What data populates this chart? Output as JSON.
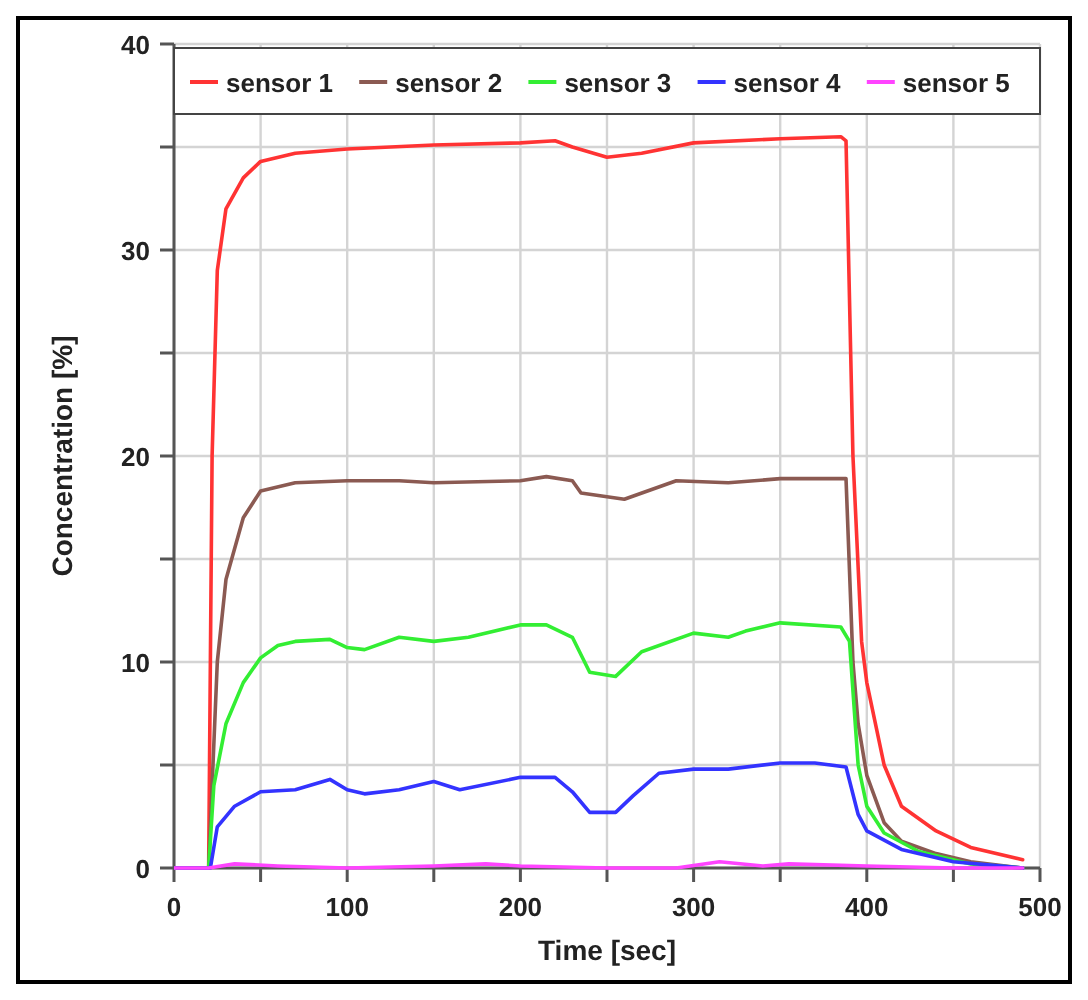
{
  "chart_data": {
    "type": "line",
    "xlabel": "Time [sec]",
    "ylabel": "Concentration [%]",
    "xlim": [
      0,
      500
    ],
    "ylim": [
      0,
      40
    ],
    "xticks": [
      0,
      {
        "value": 50,
        "label": null
      },
      100,
      {
        "value": 150,
        "label": null
      },
      200,
      {
        "value": 250,
        "label": null
      },
      300,
      {
        "value": 350,
        "label": null
      },
      400,
      {
        "value": 450,
        "label": null
      },
      500
    ],
    "yticks": [
      0,
      {
        "value": 5,
        "label": null
      },
      10,
      {
        "value": 15,
        "label": null
      },
      20,
      {
        "value": 25,
        "label": null
      },
      30,
      {
        "value": 35,
        "label": null
      },
      40
    ],
    "grid": true,
    "legend": "top",
    "marker": "none",
    "line_style": "solid",
    "series": [
      {
        "name": "sensor 1",
        "color": "#ff3333",
        "x": [
          0,
          20,
          22,
          25,
          30,
          40,
          50,
          70,
          100,
          150,
          200,
          220,
          230,
          250,
          270,
          300,
          350,
          385,
          388,
          392,
          397,
          400,
          410,
          420,
          440,
          460,
          490
        ],
        "values": [
          0,
          0,
          20,
          29,
          32,
          33.5,
          34.3,
          34.7,
          34.9,
          35.1,
          35.2,
          35.3,
          35,
          34.5,
          34.7,
          35.2,
          35.4,
          35.5,
          35.3,
          20,
          11,
          9,
          5,
          3,
          1.8,
          1,
          0.4
        ]
      },
      {
        "name": "sensor 2",
        "color": "#8b5a52",
        "x": [
          0,
          20,
          25,
          30,
          40,
          50,
          70,
          100,
          130,
          150,
          200,
          215,
          230,
          235,
          260,
          290,
          320,
          350,
          388,
          392,
          395,
          400,
          410,
          420,
          440,
          460,
          490
        ],
        "values": [
          0,
          0,
          10,
          14,
          17,
          18.3,
          18.7,
          18.8,
          18.8,
          18.7,
          18.8,
          19,
          18.8,
          18.2,
          17.9,
          18.8,
          18.7,
          18.9,
          18.9,
          10,
          7,
          4.5,
          2.2,
          1.3,
          0.7,
          0.3,
          0
        ]
      },
      {
        "name": "sensor 3",
        "color": "#33ee33",
        "x": [
          0,
          20,
          23,
          30,
          40,
          50,
          60,
          70,
          90,
          100,
          110,
          130,
          150,
          170,
          200,
          215,
          230,
          240,
          255,
          270,
          300,
          320,
          330,
          350,
          385,
          390,
          395,
          400,
          410,
          430,
          460,
          490
        ],
        "values": [
          0,
          0,
          4,
          7,
          9,
          10.2,
          10.8,
          11,
          11.1,
          10.7,
          10.6,
          11.2,
          11,
          11.2,
          11.8,
          11.8,
          11.2,
          9.5,
          9.3,
          10.5,
          11.4,
          11.2,
          11.5,
          11.9,
          11.7,
          11,
          5,
          3,
          1.7,
          0.8,
          0.2,
          0
        ]
      },
      {
        "name": "sensor 4",
        "color": "#3333ff",
        "x": [
          0,
          21,
          25,
          35,
          50,
          70,
          90,
          100,
          110,
          130,
          150,
          165,
          200,
          220,
          230,
          240,
          255,
          265,
          280,
          300,
          320,
          350,
          370,
          388,
          395,
          400,
          420,
          450,
          490
        ],
        "values": [
          0,
          0,
          2,
          3,
          3.7,
          3.8,
          4.3,
          3.8,
          3.6,
          3.8,
          4.2,
          3.8,
          4.4,
          4.4,
          3.7,
          2.7,
          2.7,
          3.5,
          4.6,
          4.8,
          4.8,
          5.1,
          5.1,
          4.9,
          2.6,
          1.8,
          0.9,
          0.3,
          0
        ]
      },
      {
        "name": "sensor 5",
        "color": "#ff44ff",
        "x": [
          0,
          20,
          35,
          60,
          100,
          150,
          180,
          200,
          250,
          290,
          315,
          340,
          355,
          400,
          450,
          490
        ],
        "values": [
          0,
          0,
          0.2,
          0.1,
          0,
          0.1,
          0.2,
          0.1,
          0,
          0,
          0.3,
          0.1,
          0.2,
          0.1,
          0,
          0
        ]
      }
    ]
  }
}
